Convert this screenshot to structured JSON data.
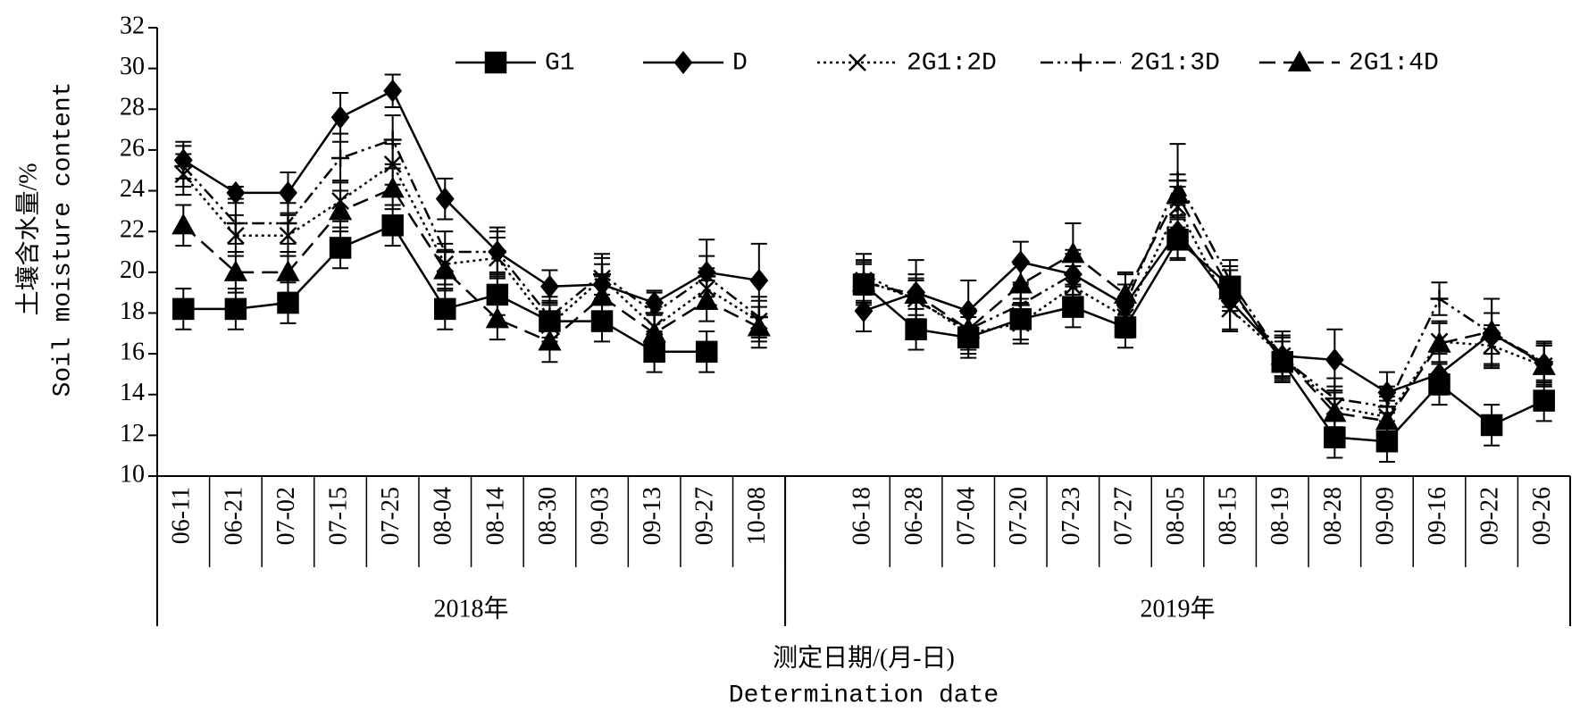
{
  "chart_data": {
    "type": "line",
    "categories": [
      "06-11",
      "06-21",
      "07-02",
      "07-15",
      "07-25",
      "08-04",
      "08-14",
      "08-30",
      "09-03",
      "09-13",
      "09-27",
      "10-08",
      null,
      "06-18",
      "06-28",
      "07-04",
      "07-20",
      "07-23",
      "07-27",
      "08-05",
      "08-15",
      "08-19",
      "08-28",
      "09-09",
      "09-16",
      "09-22",
      "09-26"
    ],
    "groups": [
      "2018年",
      "2019年"
    ],
    "ylabel": [
      "土壤含水量/%",
      "Soil moisture content"
    ],
    "xlabel": [
      "测定日期/(月-日)",
      "Determination date"
    ],
    "ylim": [
      10,
      32
    ],
    "yticks": [
      10,
      12,
      14,
      16,
      18,
      20,
      22,
      24,
      26,
      28,
      30,
      32
    ],
    "legend": "top",
    "series": [
      {
        "name": "G1",
        "color": "#000000",
        "marker": "square",
        "line_style": "solid",
        "values": [
          18.2,
          18.2,
          18.5,
          21.2,
          22.3,
          18.2,
          18.9,
          17.6,
          17.6,
          16.1,
          16.1,
          null,
          null,
          19.4,
          17.2,
          16.8,
          17.7,
          18.3,
          17.3,
          21.6,
          19.3,
          15.6,
          11.9,
          11.7,
          14.5,
          12.5,
          13.7
        ],
        "errors": [
          1.0,
          1.0,
          1.0,
          1.0,
          1.0,
          1.0,
          1.0,
          1.0,
          1.0,
          1.0,
          1.0,
          null,
          null,
          1.0,
          1.0,
          1.0,
          1.0,
          1.0,
          1.0,
          1.0,
          1.0,
          1.0,
          1.0,
          1.0,
          1.0,
          1.0,
          1.0
        ]
      },
      {
        "name": "D",
        "color": "#000000",
        "marker": "diamond",
        "line_style": "solid",
        "values": [
          25.5,
          23.9,
          23.9,
          27.6,
          28.9,
          23.6,
          21.0,
          19.3,
          19.4,
          18.5,
          20.0,
          19.6,
          null,
          18.1,
          19.0,
          18.1,
          20.5,
          19.9,
          18.4,
          22.0,
          18.6,
          15.9,
          15.7,
          14.1,
          15.0,
          17.0,
          15.5
        ],
        "errors": [
          0.9,
          0.3,
          1.0,
          1.2,
          0.8,
          1.0,
          1.2,
          0.8,
          1.0,
          0.6,
          1.6,
          1.8,
          null,
          1.0,
          1.6,
          1.5,
          1.0,
          1.2,
          1.6,
          1.3,
          1.5,
          1.2,
          1.5,
          1.0,
          1.0,
          1.7,
          1.0
        ]
      },
      {
        "name": "2G1:2D",
        "color": "#000000",
        "marker": "x",
        "line_style": "dotted",
        "values": [
          24.8,
          21.8,
          21.8,
          23.5,
          25.3,
          20.4,
          20.7,
          17.4,
          19.7,
          17.3,
          19.2,
          17.6,
          null,
          19.6,
          18.7,
          17.0,
          17.5,
          19.3,
          17.8,
          23.2,
          18.2,
          15.9,
          13.4,
          12.9,
          16.6,
          16.4,
          15.4
        ],
        "errors": [
          1.0,
          1.0,
          1.0,
          1.0,
          1.0,
          1.0,
          1.0,
          1.0,
          1.0,
          1.0,
          1.0,
          1.0,
          null,
          1.0,
          1.0,
          1.0,
          1.0,
          1.0,
          1.0,
          1.0,
          1.0,
          1.0,
          1.0,
          1.0,
          1.0,
          1.0,
          1.0
        ]
      },
      {
        "name": "2G1:3D",
        "color": "#000000",
        "marker": "plus",
        "line_style": "dashdotdot",
        "values": [
          25.2,
          22.4,
          22.4,
          25.6,
          26.5,
          21.0,
          21.0,
          17.8,
          19.9,
          18.0,
          19.8,
          17.8,
          null,
          19.9,
          18.6,
          17.2,
          18.4,
          19.9,
          18.4,
          24.5,
          19.6,
          15.8,
          13.8,
          13.4,
          18.7,
          17.0,
          15.6
        ],
        "errors": [
          1.0,
          1.0,
          1.0,
          1.2,
          1.2,
          1.0,
          1.0,
          1.0,
          1.0,
          1.0,
          1.0,
          1.0,
          null,
          1.0,
          1.0,
          1.0,
          1.0,
          1.0,
          1.0,
          1.8,
          1.0,
          1.0,
          1.0,
          1.0,
          0.8,
          1.0,
          1.0
        ]
      },
      {
        "name": "2G1:4D",
        "color": "#000000",
        "marker": "triangle",
        "line_style": "dashed",
        "values": [
          22.3,
          20.0,
          20.0,
          23.0,
          24.1,
          20.1,
          17.7,
          16.6,
          18.8,
          17.0,
          18.6,
          17.3,
          null,
          19.5,
          18.9,
          17.2,
          19.4,
          20.9,
          18.9,
          23.8,
          19.1,
          15.9,
          13.1,
          12.7,
          16.5,
          17.1,
          15.4
        ],
        "errors": [
          1.0,
          1.0,
          1.0,
          1.0,
          1.0,
          1.0,
          1.0,
          1.0,
          1.0,
          1.0,
          1.0,
          1.0,
          null,
          1.0,
          1.0,
          1.0,
          1.0,
          1.5,
          1.0,
          1.0,
          1.0,
          1.0,
          1.0,
          1.0,
          1.0,
          1.6,
          1.0
        ]
      }
    ]
  }
}
